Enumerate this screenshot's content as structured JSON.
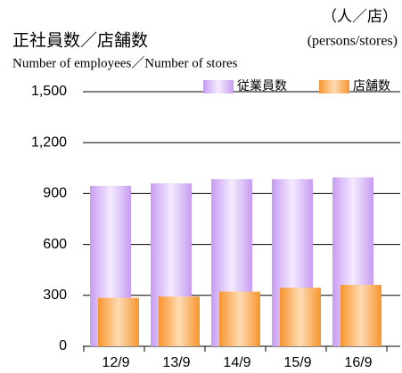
{
  "chart_data": {
    "type": "overlap_bar",
    "title": "正社員数／店舗数",
    "subtitle": "Number of employees／Number of stores",
    "unit_label": "（人／店）",
    "unit_label_en": "(persons/stores)",
    "categories": [
      "12/9",
      "13/9",
      "14/9",
      "15/9",
      "16/9"
    ],
    "series": [
      {
        "name": "従業員数",
        "color": "#c89cf2",
        "values": [
          945,
          960,
          985,
          985,
          995
        ]
      },
      {
        "name": "店舗数",
        "color": "#f7942e",
        "values": [
          285,
          293,
          322,
          345,
          362
        ]
      }
    ],
    "ylim": [
      0,
      1500
    ],
    "yticks": [
      0,
      300,
      600,
      900,
      {
        "value": 1200,
        "label": "1,200"
      },
      {
        "value": 1500,
        "label": "1,500"
      }
    ],
    "grid": true
  }
}
